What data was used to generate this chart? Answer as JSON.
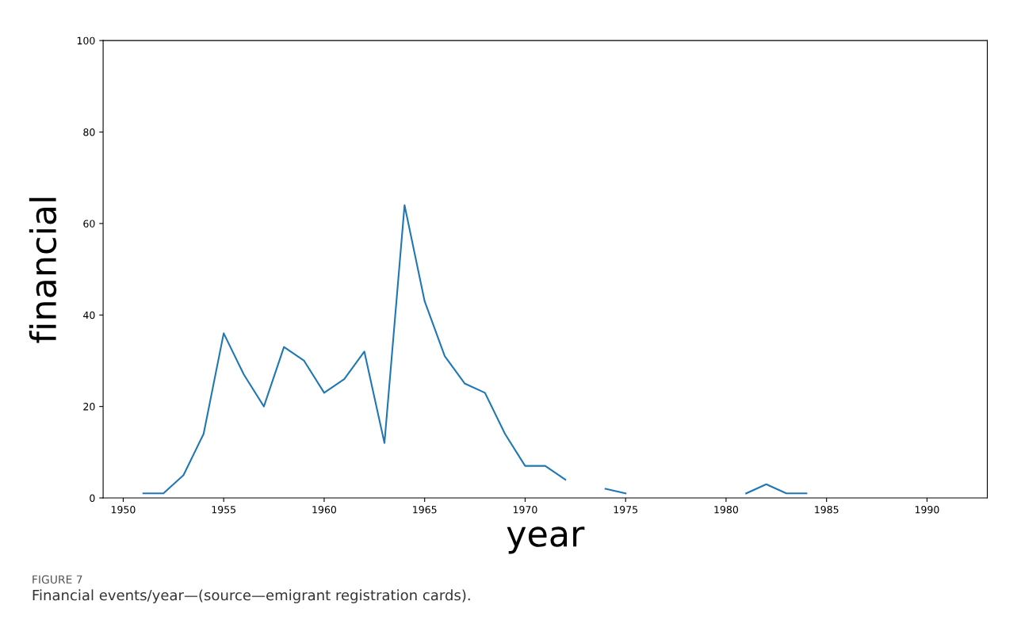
{
  "chart_data": {
    "type": "line",
    "xlabel": "year",
    "ylabel": "financial",
    "x": [
      1951,
      1952,
      1953,
      1954,
      1955,
      1956,
      1957,
      1958,
      1959,
      1960,
      1961,
      1962,
      1963,
      1964,
      1965,
      1966,
      1967,
      1968,
      1969,
      1970,
      1971,
      1972,
      1973,
      1974,
      1975,
      1976,
      1977,
      1978,
      1979,
      1980,
      1981,
      1982,
      1983,
      1984
    ],
    "series": [
      {
        "color": "#1f77b4",
        "values": [
          1,
          1,
          5,
          14,
          36,
          27,
          20,
          33,
          30,
          23,
          26,
          32,
          12,
          64,
          43,
          31,
          25,
          23,
          14,
          7,
          7,
          4,
          null,
          2,
          1,
          null,
          null,
          null,
          null,
          null,
          1,
          3,
          1,
          1
        ]
      }
    ],
    "xlim": [
      1949,
      1993
    ],
    "xticks": [
      1950,
      1955,
      1960,
      1965,
      1970,
      1975,
      1980,
      1985,
      1990
    ],
    "ylim": [
      0,
      100
    ],
    "yticks": [
      0,
      20,
      40,
      60,
      80,
      100
    ],
    "grid": false,
    "marker": "none",
    "line_style": "solid",
    "annotations": [
      "FIGURE 7",
      "Financial events/year—(source—emigrant registration cards)."
    ]
  }
}
